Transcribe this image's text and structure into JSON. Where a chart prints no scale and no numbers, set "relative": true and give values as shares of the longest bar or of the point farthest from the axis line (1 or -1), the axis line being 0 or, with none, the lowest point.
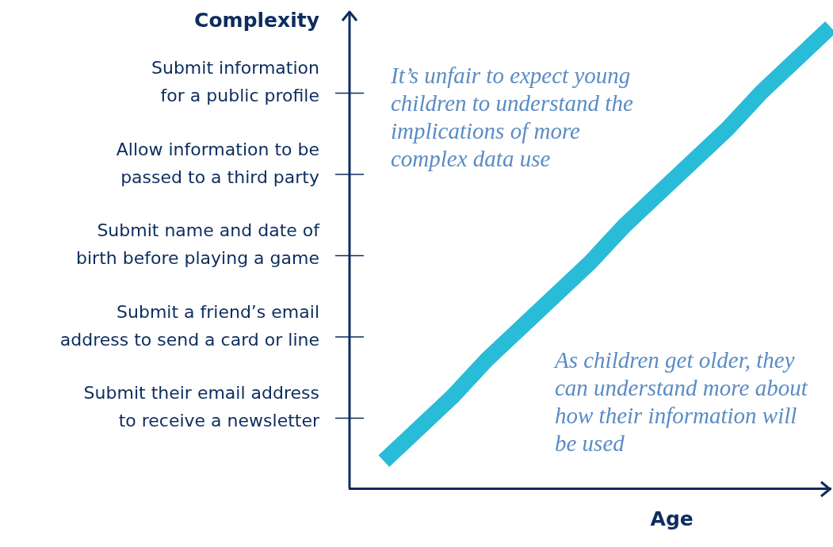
{
  "chart_data": {
    "type": "line",
    "ylabel": "Complexity",
    "xlabel": "Age",
    "categories": [
      null,
      null,
      null,
      null,
      null,
      null,
      null,
      null,
      null,
      null,
      null,
      null,
      null,
      null,
      null
    ],
    "series": [
      {
        "color": "#29bcd8",
        "values": [
          null,
          0.06,
          0.13,
          0.2,
          0.28,
          0.35,
          0.42,
          0.49,
          0.57,
          0.64,
          0.71,
          0.78,
          0.86,
          0.93,
          1.0
        ]
      }
    ],
    "relative": true,
    "grid": false,
    "legend": false,
    "marker": "none",
    "line_style": "solid",
    "annotations": [
      "Submit information for a public profile",
      "Allow information to be passed to a third party",
      "Submit name and date of birth before playing a game",
      "Submit a friend’s email address to send a card or line",
      "Submit their email address to receive a newsletter",
      "It’s unfair to expect young children to understand the implications of more complex data use",
      "As children get older, they can understand more about how their information will be used"
    ]
  }
}
